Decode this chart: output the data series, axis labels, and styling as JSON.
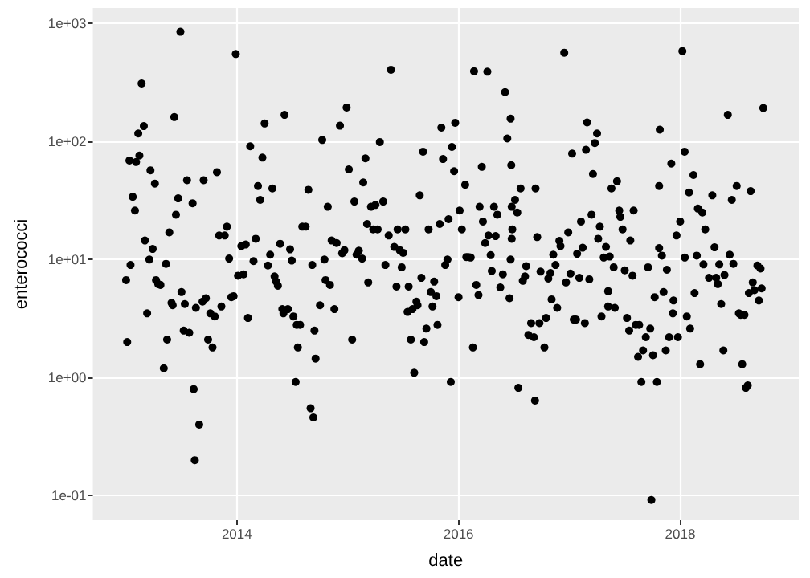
{
  "chart_data": {
    "type": "scatter",
    "xlabel": "date",
    "ylabel": "enterococci",
    "log": "y",
    "grid": true,
    "marker": "circle",
    "xlim": [
      2012.7,
      2019.07
    ],
    "xticks": [
      2014,
      2016,
      2018
    ],
    "ylim": [
      0.062,
      1350
    ],
    "yticks": [
      {
        "value": 0.1,
        "label": "1e-01"
      },
      {
        "value": 1,
        "label": "1e+00"
      },
      {
        "value": 10,
        "label": "1e+01"
      },
      {
        "value": 100,
        "label": "1e+02"
      },
      {
        "value": 1000,
        "label": "1e+03"
      }
    ],
    "series": [
      {
        "color": "#000000",
        "x": [
          2013.0,
          2013.01,
          2013.04,
          2013.03,
          2013.06,
          2013.08,
          2013.09,
          2013.11,
          2013.12,
          2013.14,
          2013.16,
          2013.17,
          2013.19,
          2013.21,
          2013.22,
          2013.24,
          2013.26,
          2013.27,
          2013.29,
          2013.31,
          2013.34,
          2013.36,
          2013.37,
          2013.39,
          2013.41,
          2013.42,
          2013.435,
          2013.45,
          2013.47,
          2013.49,
          2013.5,
          2013.52,
          2013.53,
          2013.55,
          2013.57,
          2013.6,
          2013.61,
          2013.62,
          2013.63,
          2013.66,
          2013.69,
          2013.7,
          2013.72,
          2013.74,
          2013.76,
          2013.78,
          2013.8,
          2013.82,
          2013.84,
          2013.86,
          2013.89,
          2013.91,
          2013.93,
          2013.95,
          2013.97,
          2013.99,
          2014.01,
          2014.04,
          2014.06,
          2014.08,
          2014.1,
          2014.12,
          2014.15,
          2014.17,
          2014.19,
          2014.21,
          2014.23,
          2014.25,
          2014.28,
          2014.3,
          2014.32,
          2014.34,
          2014.355,
          2014.37,
          2014.39,
          2014.41,
          2014.43,
          2014.42,
          2014.46,
          2014.48,
          2014.495,
          2014.51,
          2014.53,
          2014.54,
          2014.55,
          2014.57,
          2014.59,
          2014.62,
          2014.645,
          2014.665,
          2014.68,
          2014.69,
          2014.7,
          2014.71,
          2014.75,
          2014.77,
          2014.79,
          2014.8,
          2014.82,
          2014.84,
          2014.855,
          2014.88,
          2014.9,
          2014.93,
          2014.95,
          2014.97,
          2014.99,
          2015.01,
          2015.04,
          2015.06,
          2015.08,
          2015.1,
          2015.13,
          2015.14,
          2015.16,
          2015.185,
          2015.175,
          2015.21,
          2015.23,
          2015.25,
          2015.27,
          2015.29,
          2015.32,
          2015.34,
          2015.37,
          2015.39,
          2015.42,
          2015.44,
          2015.45,
          2015.47,
          2015.487,
          2015.5,
          2015.52,
          2015.54,
          2015.55,
          2015.57,
          2015.585,
          2015.6,
          2015.62,
          2015.63,
          2015.65,
          2015.665,
          2015.68,
          2015.69,
          2015.71,
          2015.73,
          2015.75,
          2015.765,
          2015.78,
          2015.8,
          2015.81,
          2015.83,
          2015.845,
          2015.86,
          2015.88,
          2015.9,
          2015.91,
          2015.93,
          2015.94,
          2015.96,
          2015.97,
          2016.0,
          2016.01,
          2016.03,
          2016.06,
          2016.07,
          2016.09,
          2016.11,
          2016.13,
          2016.14,
          2016.16,
          2016.18,
          2016.19,
          2016.21,
          2016.22,
          2016.24,
          2016.26,
          2016.27,
          2016.29,
          2016.3,
          2016.32,
          2016.335,
          2016.35,
          2016.377,
          2016.4,
          2016.42,
          2016.44,
          2016.46,
          2016.47,
          2016.476,
          2016.48,
          2016.48,
          2016.485,
          2016.47,
          2016.51,
          2016.53,
          2016.54,
          2016.56,
          2016.58,
          2016.6,
          2016.61,
          2016.63,
          2016.655,
          2016.68,
          2016.69,
          2016.695,
          2016.71,
          2016.73,
          2016.74,
          2016.775,
          2016.79,
          2016.81,
          2016.83,
          2016.84,
          2016.855,
          2016.875,
          2016.89,
          2016.91,
          2016.92,
          2016.954,
          2016.97,
          2016.99,
          2017.01,
          2017.025,
          2017.04,
          2017.06,
          2017.07,
          2017.09,
          2017.105,
          2017.12,
          2017.14,
          2017.15,
          2017.16,
          2017.18,
          2017.2,
          2017.213,
          2017.23,
          2017.25,
          2017.26,
          2017.275,
          2017.29,
          2017.31,
          2017.33,
          2017.35,
          2017.35,
          2017.364,
          2017.38,
          2017.4,
          2017.41,
          2017.43,
          2017.45,
          2017.46,
          2017.48,
          2017.5,
          2017.52,
          2017.54,
          2017.55,
          2017.57,
          2017.58,
          2017.6,
          2017.62,
          2017.63,
          2017.65,
          2017.665,
          2017.69,
          2017.71,
          2017.73,
          2017.74,
          2017.755,
          2017.77,
          2017.79,
          2017.81,
          2017.81,
          2017.816,
          2017.835,
          2017.85,
          2017.87,
          2017.88,
          2017.9,
          2017.92,
          2017.934,
          2017.94,
          2017.967,
          2017.98,
          2018.0,
          2018.02,
          2018.04,
          2018.042,
          2018.06,
          2018.08,
          2018.09,
          2018.12,
          2018.13,
          2018.15,
          2018.16,
          2018.18,
          2018.2,
          2018.21,
          2018.226,
          2018.26,
          2018.29,
          2018.31,
          2018.325,
          2018.34,
          2018.353,
          2018.37,
          2018.39,
          2018.4,
          2018.43,
          2018.447,
          2018.466,
          2018.48,
          2018.51,
          2018.53,
          2018.546,
          2018.56,
          2018.58,
          2018.593,
          2018.61,
          2018.62,
          2018.636,
          2018.655,
          2018.67,
          2018.697,
          2018.71,
          2018.725,
          2018.735,
          2018.75
        ],
        "values": [
          6.7,
          2.0,
          9.0,
          69,
          34,
          26,
          67,
          117,
          76,
          310,
          135,
          14.5,
          3.5,
          10,
          57,
          12.3,
          44,
          6.7,
          6.2,
          6.1,
          1.2,
          9.2,
          2.1,
          17,
          4.3,
          4.1,
          161,
          24,
          33,
          850,
          5.3,
          2.5,
          4.2,
          47,
          2.4,
          30,
          0.8,
          0.2,
          3.9,
          0.4,
          4.4,
          47,
          4.7,
          2.1,
          3.5,
          1.8,
          3.3,
          55,
          16,
          4.0,
          16,
          19,
          10.2,
          4.8,
          4.9,
          550,
          7.3,
          13,
          7.5,
          13.4,
          3.2,
          91,
          9.7,
          15,
          42,
          32,
          73,
          142,
          8.9,
          11,
          40,
          7.2,
          6.5,
          6.0,
          13.6,
          3.8,
          168,
          3.5,
          3.8,
          12.2,
          9.8,
          3.3,
          0.92,
          2.8,
          1.8,
          2.8,
          19,
          19,
          39,
          0.55,
          9.0,
          0.46,
          2.5,
          1.45,
          4.1,
          103,
          10,
          6.7,
          28,
          6.1,
          14.5,
          3.8,
          13.8,
          136,
          11.3,
          12,
          194,
          58,
          2.1,
          31,
          11,
          11.9,
          10.2,
          45,
          72,
          6.4,
          20,
          28,
          18,
          29,
          18,
          99,
          31,
          9.0,
          16,
          405,
          12.8,
          5.9,
          18,
          12,
          8.6,
          11.4,
          18,
          3.6,
          5.9,
          2.1,
          3.8,
          1.1,
          4.4,
          4.1,
          35,
          7.0,
          82,
          2.0,
          2.6,
          18,
          5.3,
          4.0,
          6.5,
          4.9,
          2.8,
          20,
          131,
          71,
          9.0,
          10,
          22,
          0.92,
          90,
          56,
          144,
          4.8,
          26,
          18,
          43,
          10.5,
          10.5,
          10.4,
          1.8,
          393,
          6.1,
          5.0,
          28,
          61,
          21,
          13.8,
          390,
          16,
          10.9,
          8.0,
          28,
          15.8,
          24,
          5.8,
          7.5,
          262,
          106,
          4.7,
          156,
          63,
          28,
          15,
          18,
          10,
          32,
          25,
          0.82,
          40,
          6.6,
          7.2,
          8.8,
          2.3,
          2.9,
          2.2,
          0.64,
          40,
          15.5,
          2.9,
          7.9,
          1.8,
          3.2,
          6.9,
          7.7,
          4.6,
          11,
          9.0,
          3.9,
          14.4,
          13,
          565,
          6.4,
          17,
          7.6,
          79,
          3.1,
          3.1,
          11.2,
          7.0,
          21,
          12.6,
          2.9,
          85,
          145,
          6.8,
          24,
          53,
          97,
          117,
          15,
          19,
          3.3,
          10.4,
          12.8,
          5.4,
          4.0,
          10.6,
          40,
          8.6,
          3.9,
          46,
          26,
          23,
          18,
          8.1,
          3.2,
          2.5,
          14.5,
          7.3,
          26,
          2.8,
          1.5,
          2.8,
          0.92,
          1.7,
          2.2,
          8.6,
          2.6,
          0.092,
          1.55,
          4.8,
          0.92,
          42,
          12.5,
          126,
          10.8,
          5.3,
          1.7,
          8.2,
          2.2,
          65,
          3.5,
          4.5,
          16,
          2.2,
          21,
          583,
          82,
          10.4,
          3.3,
          37,
          2.6,
          52,
          5.2,
          10.8,
          27,
          1.3,
          25,
          9.1,
          18,
          7.0,
          35,
          12.7,
          7.0,
          6.2,
          9.1,
          4.2,
          1.7,
          7.4,
          168,
          11,
          32,
          9.2,
          42,
          3.5,
          3.4,
          1.3,
          3.4,
          0.82,
          0.86,
          5.2,
          38,
          6.4,
          5.5,
          8.9,
          4.5,
          8.4,
          5.7,
          192
        ]
      }
    ]
  }
}
